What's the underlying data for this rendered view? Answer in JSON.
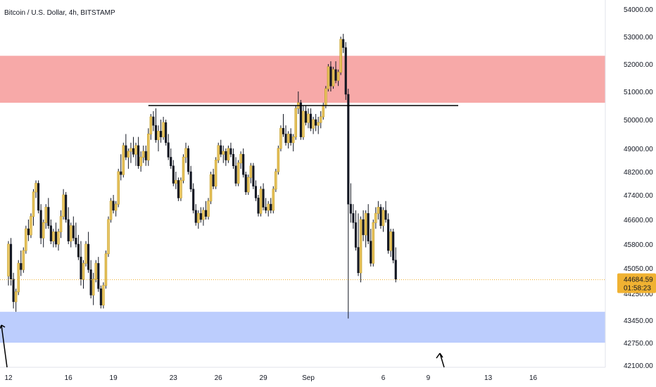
{
  "chart_data": {
    "type": "candlestick",
    "title": "Bitcoin / U.S. Dollar, 4h, BITSTAMP",
    "price_ticks": [
      "54000.00",
      "53000.00",
      "52000.00",
      "51000.00",
      "50000.00",
      "49000.00",
      "48200.00",
      "47400.00",
      "46600.00",
      "45800.00",
      "45050.00",
      "44250.00",
      "43450.00",
      "42750.00",
      "42100.00"
    ],
    "price_tick_values": [
      54000,
      53000,
      52000,
      51000,
      50000,
      49000,
      48200,
      47400,
      46600,
      45800,
      45050,
      44250,
      43450,
      42750,
      42100
    ],
    "date_ticks": [
      "12",
      "16",
      "19",
      "23",
      "26",
      "29",
      "Sep",
      "6",
      "9",
      "13",
      "16"
    ],
    "date_tick_bar_index": [
      0,
      24,
      42,
      66,
      84,
      102,
      120,
      150,
      168,
      192,
      210
    ],
    "last_price": "44684.59",
    "countdown": "01:58:23",
    "zones": [
      {
        "name": "resistance",
        "low": 50600,
        "high": 52300,
        "color": "#f7a9a8"
      },
      {
        "name": "support",
        "low": 42750,
        "high": 43700,
        "color": "#bccdfd"
      }
    ],
    "level_line": {
      "value": 50500,
      "from_bar": 56,
      "to_bar": 180
    },
    "candles": [
      [
        44800,
        45900,
        44500,
        45800
      ],
      [
        45800,
        46000,
        44500,
        44700
      ],
      [
        44700,
        44900,
        43800,
        44000
      ],
      [
        44000,
        44400,
        43700,
        44300
      ],
      [
        44300,
        45300,
        44200,
        45200
      ],
      [
        45200,
        45600,
        44800,
        45000
      ],
      [
        45000,
        45700,
        44900,
        45600
      ],
      [
        45600,
        46400,
        45500,
        46300
      ],
      [
        46300,
        46600,
        45900,
        46100
      ],
      [
        46100,
        46800,
        46000,
        46700
      ],
      [
        46700,
        47600,
        46400,
        47500
      ],
      [
        47500,
        47900,
        47300,
        47800
      ],
      [
        47800,
        47900,
        46800,
        46900
      ],
      [
        46900,
        47100,
        45800,
        46000
      ],
      [
        46000,
        46600,
        45700,
        46500
      ],
      [
        46500,
        47100,
        46300,
        47000
      ],
      [
        47000,
        47300,
        46300,
        46400
      ],
      [
        46400,
        46600,
        45800,
        45900
      ],
      [
        45900,
        46300,
        45700,
        46200
      ],
      [
        46200,
        46500,
        45700,
        45800
      ],
      [
        45800,
        46300,
        45600,
        46200
      ],
      [
        46200,
        46900,
        46000,
        46700
      ],
      [
        46700,
        47600,
        46600,
        47400
      ],
      [
        47400,
        47500,
        46500,
        46600
      ],
      [
        46600,
        47000,
        45800,
        45900
      ],
      [
        45900,
        46500,
        45700,
        46400
      ],
      [
        46400,
        46700,
        45900,
        46000
      ],
      [
        46000,
        46500,
        45700,
        45800
      ],
      [
        45800,
        46100,
        45300,
        45400
      ],
      [
        45400,
        45900,
        44500,
        44700
      ],
      [
        44700,
        45300,
        44400,
        45200
      ],
      [
        45200,
        45900,
        45100,
        45800
      ],
      [
        45800,
        46200,
        44900,
        45000
      ],
      [
        45000,
        45300,
        44100,
        44200
      ],
      [
        44200,
        44900,
        43900,
        44700
      ],
      [
        44700,
        45300,
        44600,
        45200
      ],
      [
        45200,
        45400,
        44300,
        44400
      ],
      [
        44400,
        44500,
        43800,
        43900
      ],
      [
        43900,
        44600,
        43800,
        44500
      ],
      [
        44500,
        45600,
        44400,
        45500
      ],
      [
        45500,
        46700,
        45400,
        46600
      ],
      [
        46600,
        47300,
        46500,
        47200
      ],
      [
        47200,
        47400,
        46800,
        46900
      ],
      [
        46900,
        47200,
        46700,
        47100
      ],
      [
        47100,
        48300,
        47000,
        48200
      ],
      [
        48200,
        48800,
        47900,
        48100
      ],
      [
        48100,
        49200,
        48000,
        49100
      ],
      [
        49100,
        49500,
        48600,
        48700
      ],
      [
        48700,
        49000,
        48300,
        48900
      ],
      [
        48900,
        49200,
        48500,
        49000
      ],
      [
        49000,
        49400,
        48700,
        48800
      ],
      [
        48800,
        49200,
        48400,
        49100
      ],
      [
        49100,
        49400,
        48300,
        48400
      ],
      [
        48400,
        48900,
        48200,
        48700
      ],
      [
        48700,
        49100,
        48500,
        48900
      ],
      [
        48900,
        49100,
        48400,
        48600
      ],
      [
        48600,
        49700,
        48400,
        49500
      ],
      [
        49500,
        50200,
        49300,
        50100
      ],
      [
        50100,
        50300,
        49600,
        49800
      ],
      [
        49800,
        50400,
        49200,
        49300
      ],
      [
        49300,
        49800,
        48900,
        49600
      ],
      [
        49600,
        50000,
        49200,
        49400
      ],
      [
        49400,
        50100,
        49300,
        49900
      ],
      [
        49900,
        50000,
        49100,
        49200
      ],
      [
        49200,
        49500,
        48600,
        48700
      ],
      [
        48700,
        49000,
        48300,
        48400
      ],
      [
        48400,
        48600,
        47700,
        47800
      ],
      [
        47800,
        48200,
        47600,
        47900
      ],
      [
        47900,
        48000,
        47200,
        47300
      ],
      [
        47300,
        48000,
        47200,
        47900
      ],
      [
        47900,
        48800,
        47800,
        48700
      ],
      [
        48700,
        49200,
        48500,
        49000
      ],
      [
        49000,
        49100,
        48100,
        48200
      ],
      [
        48200,
        48400,
        47500,
        47600
      ],
      [
        47600,
        47800,
        46800,
        46900
      ],
      [
        46900,
        47100,
        46400,
        46500
      ],
      [
        46500,
        46900,
        46300,
        46800
      ],
      [
        46800,
        47000,
        46500,
        46600
      ],
      [
        46600,
        47000,
        46400,
        46900
      ],
      [
        46900,
        47200,
        46600,
        46700
      ],
      [
        46700,
        47300,
        46600,
        47200
      ],
      [
        47200,
        48200,
        47100,
        48100
      ],
      [
        48100,
        48300,
        47600,
        47700
      ],
      [
        47700,
        48700,
        47600,
        48600
      ],
      [
        48600,
        49200,
        48500,
        49100
      ],
      [
        49100,
        49300,
        48700,
        48800
      ],
      [
        48800,
        49100,
        48500,
        48900
      ],
      [
        48900,
        49000,
        48400,
        48600
      ],
      [
        48600,
        49100,
        48500,
        49000
      ],
      [
        49000,
        49200,
        48700,
        48800
      ],
      [
        48800,
        49000,
        48300,
        48400
      ],
      [
        48400,
        48700,
        47700,
        47800
      ],
      [
        47800,
        48600,
        47700,
        48500
      ],
      [
        48500,
        48900,
        48300,
        48800
      ],
      [
        48800,
        49000,
        48000,
        48100
      ],
      [
        48100,
        48200,
        47400,
        47500
      ],
      [
        47500,
        48100,
        47400,
        48000
      ],
      [
        48000,
        48500,
        47800,
        48400
      ],
      [
        48400,
        48500,
        47600,
        47700
      ],
      [
        47700,
        47900,
        47200,
        47300
      ],
      [
        47300,
        47400,
        46700,
        46800
      ],
      [
        46800,
        47700,
        46700,
        47600
      ],
      [
        47600,
        47800,
        46900,
        47000
      ],
      [
        47000,
        47300,
        46800,
        46900
      ],
      [
        46900,
        47200,
        46700,
        47100
      ],
      [
        47100,
        47300,
        46800,
        46900
      ],
      [
        46900,
        47700,
        46800,
        47600
      ],
      [
        47600,
        48300,
        47500,
        48200
      ],
      [
        48200,
        49100,
        48100,
        49000
      ],
      [
        49000,
        49800,
        48900,
        49700
      ],
      [
        49700,
        50200,
        49400,
        49500
      ],
      [
        49500,
        49800,
        49100,
        49200
      ],
      [
        49200,
        49600,
        49000,
        49500
      ],
      [
        49500,
        49700,
        49100,
        49200
      ],
      [
        49200,
        49500,
        48900,
        49400
      ],
      [
        49400,
        50500,
        49300,
        50400
      ],
      [
        50400,
        51000,
        50200,
        50600
      ],
      [
        50600,
        50700,
        49300,
        49400
      ],
      [
        49400,
        50500,
        49300,
        50300
      ],
      [
        50300,
        50500,
        49800,
        49900
      ],
      [
        49900,
        50400,
        49700,
        50200
      ],
      [
        50200,
        50400,
        49600,
        49700
      ],
      [
        49700,
        50100,
        49500,
        50000
      ],
      [
        50000,
        50200,
        49600,
        49800
      ],
      [
        49800,
        50100,
        49500,
        49900
      ],
      [
        49900,
        50300,
        49700,
        50100
      ],
      [
        50100,
        50600,
        50000,
        50500
      ],
      [
        50500,
        51200,
        50400,
        51100
      ],
      [
        51100,
        52000,
        51000,
        51900
      ],
      [
        51900,
        52100,
        51000,
        51200
      ],
      [
        51200,
        51900,
        51100,
        51800
      ],
      [
        51800,
        52100,
        51300,
        51400
      ],
      [
        51400,
        51800,
        51200,
        51700
      ],
      [
        51700,
        53000,
        51600,
        52900
      ],
      [
        52900,
        53100,
        52400,
        52600
      ],
      [
        52600,
        52800,
        50700,
        50900
      ],
      [
        50900,
        51100,
        43500,
        47100
      ],
      [
        47100,
        47800,
        46500,
        46800
      ],
      [
        46800,
        47100,
        46300,
        46500
      ],
      [
        46500,
        46900,
        45600,
        45700
      ],
      [
        45700,
        46800,
        44800,
        44900
      ],
      [
        44900,
        46700,
        44600,
        46600
      ],
      [
        46600,
        46900,
        45900,
        46100
      ],
      [
        46100,
        46900,
        45700,
        46800
      ],
      [
        46800,
        47100,
        45800,
        45900
      ],
      [
        45900,
        46300,
        45100,
        45200
      ],
      [
        45200,
        46600,
        45100,
        46500
      ],
      [
        46500,
        47000,
        46300,
        46800
      ],
      [
        46800,
        47200,
        46600,
        47000
      ],
      [
        47000,
        47100,
        46300,
        46400
      ],
      [
        46400,
        47000,
        46200,
        46900
      ],
      [
        46900,
        47200,
        46500,
        46600
      ],
      [
        46600,
        46800,
        45500,
        45600
      ],
      [
        45600,
        46300,
        45400,
        46200
      ],
      [
        46200,
        46300,
        45200,
        45300
      ],
      [
        45300,
        45700,
        44600,
        44700
      ]
    ]
  }
}
